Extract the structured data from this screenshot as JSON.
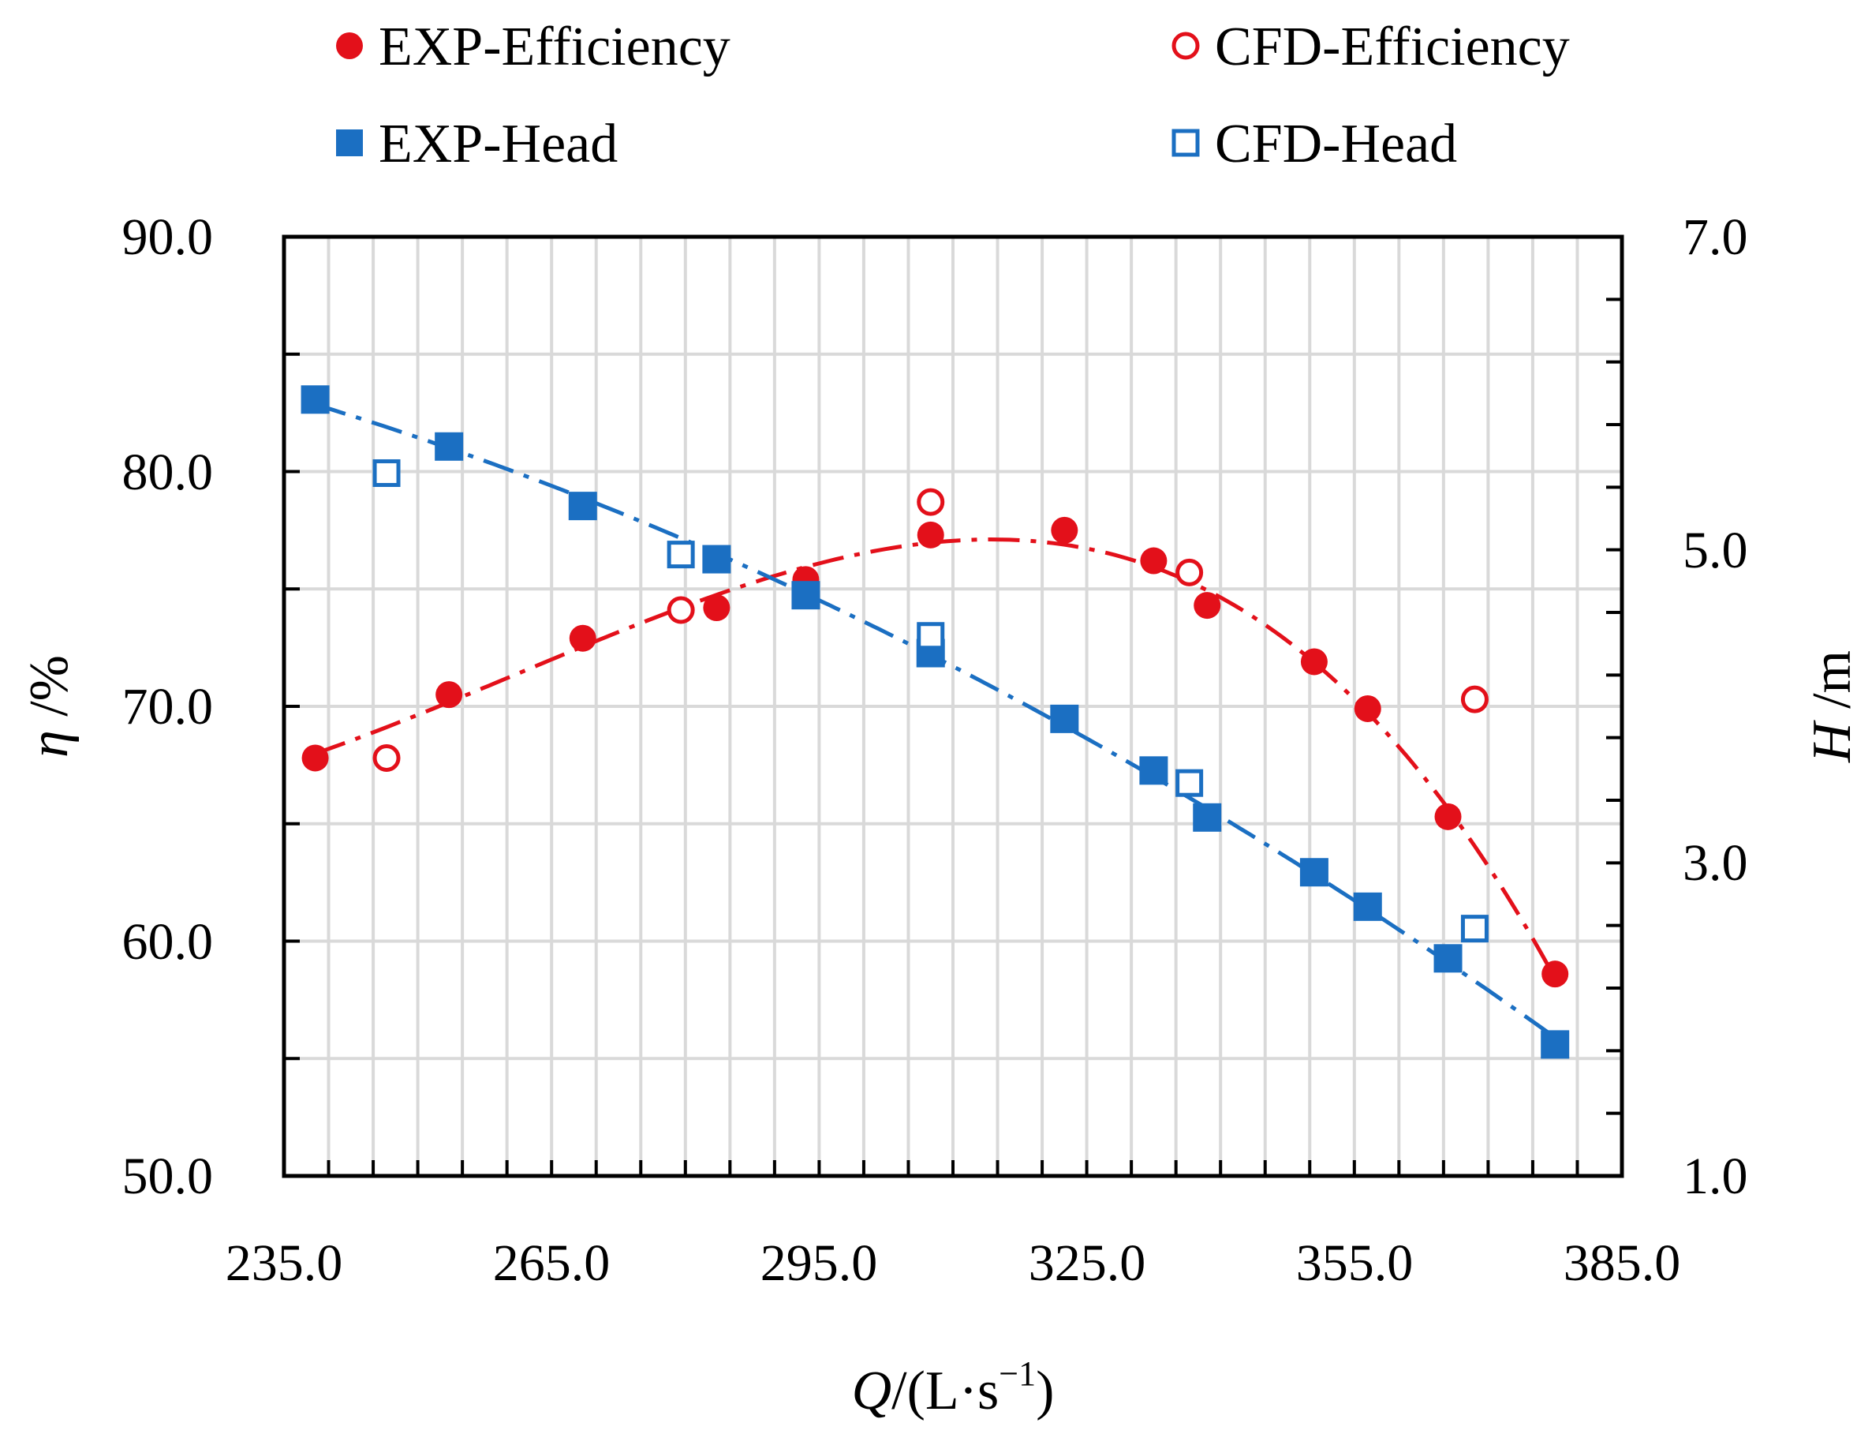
{
  "chart_data": {
    "type": "scatter",
    "title": "",
    "xlabel": {
      "symbol": "Q",
      "unit": "/(L·s",
      "exponent": "−1",
      "close": ")"
    },
    "ylabel_left": {
      "symbol": "η",
      "unit": " /%"
    },
    "ylabel_right": {
      "symbol": "H",
      "unit": " /m"
    },
    "xlim": [
      235,
      385
    ],
    "ylim_left": [
      50,
      90
    ],
    "ylim_right": [
      1,
      7
    ],
    "x_ticks": [
      "235.0",
      "265.0",
      "295.0",
      "325.0",
      "355.0",
      "385.0"
    ],
    "y_left_ticks": [
      "50.0",
      "60.0",
      "70.0",
      "80.0",
      "90.0"
    ],
    "y_right_ticks": [
      "1.0",
      "3.0",
      "5.0",
      "7.0"
    ],
    "grid": true,
    "legend_position": "top",
    "colors": {
      "efficiency": "#e3101a",
      "head": "#1b6fc2",
      "grid": "#d9d9d9",
      "axis": "#000000"
    },
    "series": [
      {
        "name": "EXP-Efficiency",
        "axis": "left",
        "marker": "filled-circle",
        "color": "#e3101a",
        "line": "dash-dot",
        "x": [
          238.5,
          253.5,
          268.5,
          283.5,
          293.5,
          307.5,
          322.5,
          332.5,
          338.5,
          350.5,
          356.5,
          365.5,
          377.5
        ],
        "y": [
          67.8,
          70.5,
          72.9,
          74.2,
          75.4,
          77.3,
          77.5,
          76.2,
          74.3,
          71.9,
          69.9,
          65.3,
          58.6
        ]
      },
      {
        "name": "CFD-Efficiency",
        "axis": "left",
        "marker": "open-circle",
        "color": "#e3101a",
        "x": [
          246.5,
          279.5,
          307.5,
          336.5,
          368.5
        ],
        "y": [
          67.8,
          74.1,
          78.7,
          75.7,
          70.3
        ]
      },
      {
        "name": "EXP-Head",
        "axis": "right",
        "marker": "filled-square",
        "color": "#1b6fc2",
        "line": "dash-dot",
        "x": [
          238.5,
          253.5,
          268.5,
          283.5,
          293.5,
          307.5,
          322.5,
          332.5,
          338.5,
          350.5,
          356.5,
          365.5,
          377.5
        ],
        "y": [
          5.96,
          5.66,
          5.28,
          4.94,
          4.71,
          4.34,
          3.92,
          3.59,
          3.29,
          2.94,
          2.72,
          2.39,
          1.84
        ]
      },
      {
        "name": "CFD-Head",
        "axis": "right",
        "marker": "open-square",
        "color": "#1b6fc2",
        "x": [
          246.5,
          279.5,
          307.5,
          336.5,
          368.5
        ],
        "y": [
          5.49,
          4.97,
          4.45,
          3.51,
          2.58
        ]
      }
    ]
  }
}
